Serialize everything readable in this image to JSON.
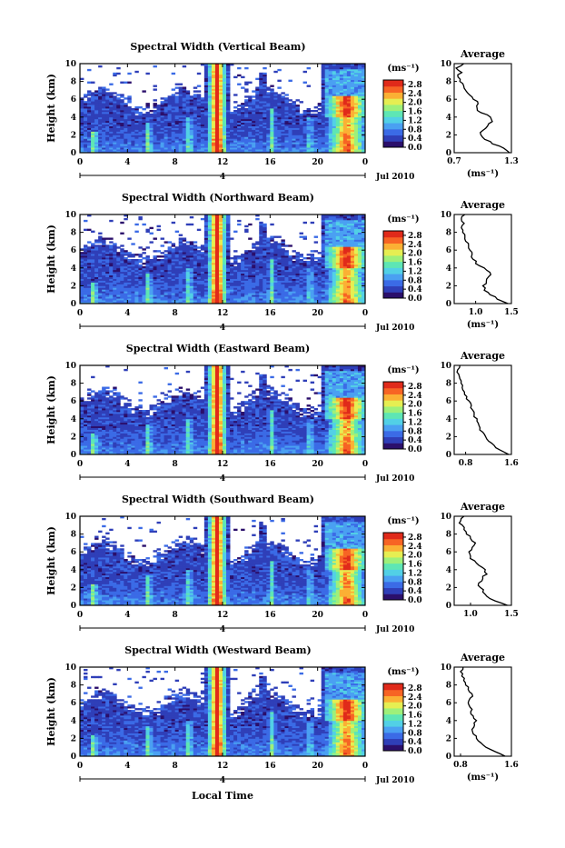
{
  "footer_xlabel": "Local Time",
  "colors": {
    "colormap": [
      "#2b0f6b",
      "#2f3fb8",
      "#3b6be6",
      "#4aa0f2",
      "#52d0e6",
      "#5ee6b4",
      "#9ef07a",
      "#e6ee52",
      "#fbb034",
      "#f76424",
      "#e02a1a"
    ],
    "line": "#000000"
  },
  "chart_data": [
    {
      "type": "heatmap",
      "title": "Spectral Width (Vertical Beam)",
      "ylabel": "Height (km)",
      "ylim": [
        0,
        10
      ],
      "y_ticks": [
        "0",
        "2",
        "4",
        "6",
        "8",
        "10"
      ],
      "x_ticks": [
        "0",
        "4",
        "8",
        "12",
        "16",
        "20",
        "0"
      ],
      "date_label": "4",
      "month_label": "Jul 2010",
      "colorbar": {
        "unit": "(ms⁻¹)",
        "ticks": [
          "0.0",
          "0.4",
          "0.8",
          "1.2",
          "1.6",
          "2.0",
          "2.4",
          "2.8"
        ],
        "range": [
          0,
          3.0
        ]
      },
      "profile": {
        "title": "Average",
        "xlabel": "(ms⁻¹)",
        "xlim": [
          0.7,
          1.3
        ],
        "x_ticks": [
          "0.7",
          "1.3"
        ],
        "heights": [
          0,
          0.5,
          1,
          1.5,
          2,
          2.5,
          3,
          3.5,
          4,
          4.5,
          5,
          5.5,
          6,
          6.5,
          7,
          7.5,
          8,
          8.5,
          9,
          9.5,
          10
        ],
        "values": [
          1.28,
          1.22,
          1.1,
          1.02,
          0.98,
          1.0,
          1.05,
          1.1,
          1.08,
          0.98,
          0.94,
          0.95,
          0.9,
          0.86,
          0.82,
          0.8,
          0.76,
          0.74,
          0.78,
          0.72,
          0.8
        ]
      }
    },
    {
      "type": "heatmap",
      "title": "Spectral Width (Northward Beam)",
      "ylabel": "Height (km)",
      "ylim": [
        0,
        10
      ],
      "y_ticks": [
        "0",
        "2",
        "4",
        "6",
        "8",
        "10"
      ],
      "x_ticks": [
        "0",
        "4",
        "8",
        "12",
        "16",
        "20",
        "0"
      ],
      "date_label": "4",
      "month_label": "Jul 2010",
      "colorbar": {
        "unit": "(ms⁻¹)",
        "ticks": [
          "0.0",
          "0.4",
          "0.8",
          "1.2",
          "1.6",
          "2.0",
          "2.4",
          "2.8"
        ],
        "range": [
          0,
          3.0
        ]
      },
      "profile": {
        "title": "Average",
        "xlabel": "(ms⁻¹)",
        "xlim": [
          0.7,
          1.5
        ],
        "x_ticks": [
          "1.0",
          "1.5"
        ],
        "heights": [
          0,
          0.5,
          1,
          1.5,
          2,
          2.5,
          3,
          3.5,
          4,
          4.5,
          5,
          5.5,
          6,
          6.5,
          7,
          7.5,
          8,
          8.5,
          9,
          9.5,
          10
        ],
        "values": [
          1.45,
          1.3,
          1.2,
          1.12,
          1.1,
          1.15,
          1.18,
          1.2,
          1.12,
          1.0,
          0.96,
          0.95,
          0.92,
          0.9,
          0.86,
          0.85,
          0.82,
          0.8,
          0.84,
          0.8,
          0.85
        ]
      }
    },
    {
      "type": "heatmap",
      "title": "Spectral Width (Eastward Beam)",
      "ylabel": "Height (km)",
      "ylim": [
        0,
        10
      ],
      "y_ticks": [
        "0",
        "2",
        "4",
        "6",
        "8",
        "10"
      ],
      "x_ticks": [
        "0",
        "4",
        "8",
        "12",
        "16",
        "20",
        "0"
      ],
      "date_label": "4",
      "month_label": "Jul 2010",
      "colorbar": {
        "unit": "(ms⁻¹)",
        "ticks": [
          "0.0",
          "0.4",
          "0.8",
          "1.2",
          "1.6",
          "2.0",
          "2.4",
          "2.8"
        ],
        "range": [
          0,
          3.0
        ]
      },
      "profile": {
        "title": "Average",
        "xlabel": "",
        "xlim": [
          0.6,
          1.6
        ],
        "x_ticks": [
          "0.8",
          "1.6"
        ],
        "heights": [
          0,
          0.5,
          1,
          1.5,
          2,
          2.5,
          3,
          3.5,
          4,
          4.5,
          5,
          5.5,
          6,
          6.5,
          7,
          7.5,
          8,
          8.5,
          9,
          9.5,
          10
        ],
        "values": [
          1.55,
          1.4,
          1.3,
          1.2,
          1.15,
          1.1,
          1.05,
          1.02,
          1.0,
          0.95,
          0.92,
          0.9,
          0.86,
          0.82,
          0.78,
          0.74,
          0.72,
          0.7,
          0.68,
          0.66,
          0.7
        ]
      }
    },
    {
      "type": "heatmap",
      "title": "Spectral Width (Southward Beam)",
      "ylabel": "Height (km)",
      "ylim": [
        0,
        10
      ],
      "y_ticks": [
        "0",
        "2",
        "4",
        "6",
        "8",
        "10"
      ],
      "x_ticks": [
        "0",
        "4",
        "8",
        "12",
        "16",
        "20",
        "0"
      ],
      "date_label": "4",
      "month_label": "Jul 2010",
      "colorbar": {
        "unit": "(ms⁻¹)",
        "ticks": [
          "0.0",
          "0.4",
          "0.8",
          "1.2",
          "1.6",
          "2.0",
          "2.4",
          "2.8"
        ],
        "range": [
          0,
          3.0
        ]
      },
      "profile": {
        "title": "Average",
        "xlabel": "",
        "xlim": [
          0.8,
          1.5
        ],
        "x_ticks": [
          "1.0",
          "1.5"
        ],
        "heights": [
          0,
          0.5,
          1,
          1.5,
          2,
          2.5,
          3,
          3.5,
          4,
          4.5,
          5,
          5.5,
          6,
          6.5,
          7,
          7.5,
          8,
          8.5,
          9,
          9.5,
          10
        ],
        "values": [
          1.45,
          1.3,
          1.2,
          1.15,
          1.12,
          1.1,
          1.15,
          1.2,
          1.18,
          1.1,
          1.05,
          1.0,
          0.98,
          1.02,
          1.06,
          1.0,
          0.95,
          0.92,
          0.9,
          0.88,
          0.92
        ]
      }
    },
    {
      "type": "heatmap",
      "title": "Spectral Width (Westward Beam)",
      "ylabel": "Height (km)",
      "ylim": [
        0,
        10
      ],
      "y_ticks": [
        "0",
        "2",
        "4",
        "6",
        "8",
        "10"
      ],
      "x_ticks": [
        "0",
        "4",
        "8",
        "12",
        "16",
        "20",
        "0"
      ],
      "date_label": "4",
      "month_label": "Jul 2010",
      "colorbar": {
        "unit": "(ms⁻¹)",
        "ticks": [
          "0.0",
          "0.4",
          "0.8",
          "1.2",
          "1.6",
          "2.0",
          "2.4",
          "2.8"
        ],
        "range": [
          0,
          3.0
        ]
      },
      "profile": {
        "title": "Average",
        "xlabel": "(ms⁻¹)",
        "xlim": [
          0.7,
          1.6
        ],
        "x_ticks": [
          "0.8",
          "1.6"
        ],
        "heights": [
          0,
          0.5,
          1,
          1.5,
          2,
          2.5,
          3,
          3.5,
          4,
          4.5,
          5,
          5.5,
          6,
          6.5,
          7,
          7.5,
          8,
          8.5,
          9,
          9.5,
          10
        ],
        "values": [
          1.5,
          1.35,
          1.2,
          1.12,
          1.05,
          1.0,
          0.98,
          1.02,
          1.05,
          1.0,
          0.96,
          0.95,
          0.92,
          0.95,
          0.98,
          0.92,
          0.88,
          0.85,
          0.82,
          0.8,
          0.84
        ]
      }
    }
  ]
}
